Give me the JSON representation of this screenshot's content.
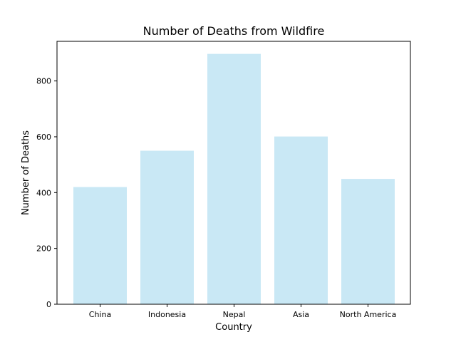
{
  "chart_data": {
    "type": "bar",
    "title": "Number of Deaths from Wildfire",
    "xlabel": "Country",
    "ylabel": "Number of Deaths",
    "categories": [
      "China",
      "Indonesia",
      "Nepal",
      "Asia",
      "North America"
    ],
    "values": [
      420,
      550,
      897,
      601,
      449
    ],
    "ylim": [
      0,
      942
    ],
    "yticks": [
      0,
      200,
      400,
      600,
      800
    ],
    "bar_color": "#c9e8f5",
    "grid": false,
    "legend": "none"
  }
}
